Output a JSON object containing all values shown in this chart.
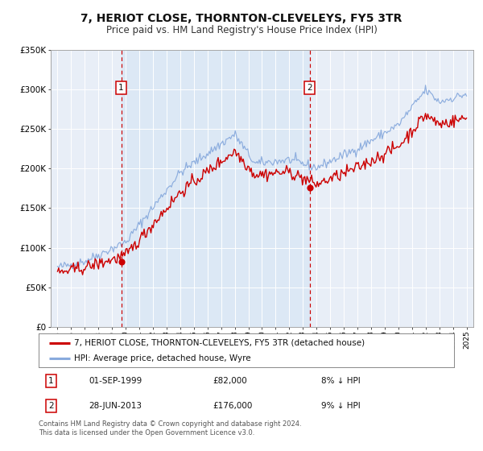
{
  "title": "7, HERIOT CLOSE, THORNTON-CLEVELEYS, FY5 3TR",
  "subtitle": "Price paid vs. HM Land Registry's House Price Index (HPI)",
  "title_fontsize": 10,
  "subtitle_fontsize": 8.5,
  "background_color": "#ffffff",
  "plot_bg_color": "#e8eef7",
  "grid_color": "#ffffff",
  "ylim": [
    0,
    350000
  ],
  "yticks": [
    0,
    50000,
    100000,
    150000,
    200000,
    250000,
    300000,
    350000
  ],
  "ytick_labels": [
    "£0",
    "£50K",
    "£100K",
    "£150K",
    "£200K",
    "£250K",
    "£300K",
    "£350K"
  ],
  "sale1_date_num": 1999.67,
  "sale1_price": 82000,
  "sale1_label": "1",
  "sale2_date_num": 2013.49,
  "sale2_price": 176000,
  "sale2_label": "2",
  "property_color": "#cc0000",
  "hpi_color": "#88aadd",
  "vline_color": "#cc0000",
  "shade_color": "#dce8f5",
  "legend_property": "7, HERIOT CLOSE, THORNTON-CLEVELEYS, FY5 3TR (detached house)",
  "legend_hpi": "HPI: Average price, detached house, Wyre",
  "table_row1": [
    "1",
    "01-SEP-1999",
    "£82,000",
    "8% ↓ HPI"
  ],
  "table_row2": [
    "2",
    "28-JUN-2013",
    "£176,000",
    "9% ↓ HPI"
  ],
  "footer1": "Contains HM Land Registry data © Crown copyright and database right 2024.",
  "footer2": "This data is licensed under the Open Government Licence v3.0."
}
